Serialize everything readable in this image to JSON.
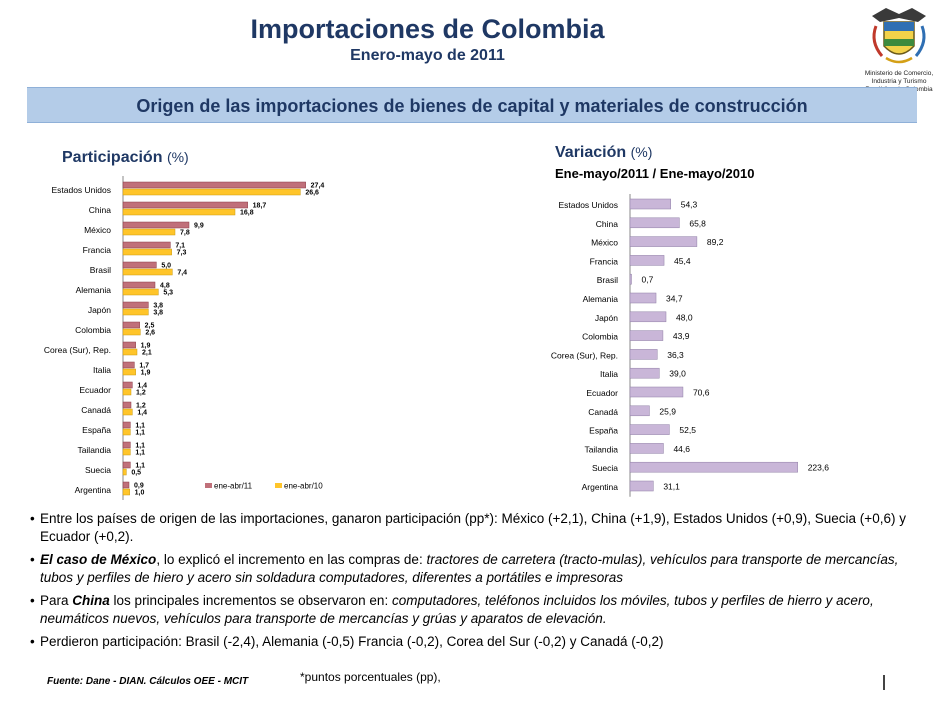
{
  "header": {
    "title": "Importaciones de Colombia",
    "subtitle": "Enero-mayo de 2011"
  },
  "logo": {
    "line1": "Ministerio de Comercio,",
    "line2": "Industria y Turismo",
    "line3": "República de Colombia"
  },
  "banner": "Origen de las importaciones de bienes de capital y materiales de construcción",
  "participacion": {
    "title": "Participación",
    "unit": "(%)"
  },
  "variacion": {
    "title": "Variación",
    "unit": "(%)",
    "subtitle": "Ene-mayo/2011 / Ene-mayo/2010"
  },
  "chart_data": [
    {
      "type": "bar",
      "orientation": "horizontal",
      "title": "Participación (%)",
      "categories": [
        "Estados Unidos",
        "China",
        "México",
        "Francia",
        "Brasil",
        "Alemania",
        "Japón",
        "Colombia",
        "Corea (Sur), Rep.",
        "Italia",
        "Ecuador",
        "Canadá",
        "España",
        "Tailandia",
        "Suecia",
        "Argentina"
      ],
      "series": [
        {
          "name": "ene-abr/11",
          "color": "#c0707a",
          "values": [
            27.4,
            18.7,
            9.9,
            7.1,
            5.0,
            4.8,
            3.8,
            2.5,
            1.9,
            1.7,
            1.4,
            1.2,
            1.1,
            1.1,
            1.1,
            0.9
          ]
        },
        {
          "name": "ene-abr/10",
          "color": "#ffc52a",
          "values": [
            26.6,
            16.8,
            7.8,
            7.3,
            7.4,
            5.3,
            3.8,
            2.6,
            2.1,
            1.9,
            1.2,
            1.4,
            1.1,
            1.1,
            0.5,
            1.0
          ]
        }
      ],
      "value_labels": [
        [
          "27,4",
          "18,7",
          "9,9",
          "7,1",
          "5,0",
          "4,8",
          "3,8",
          "2,5",
          "1,9",
          "1,7",
          "1,4",
          "1,2",
          "1,1",
          "1,1",
          "1,1",
          "0,9"
        ],
        [
          "26,6",
          "16,8",
          "7,8",
          "7,3",
          "7,4",
          "5,3",
          "3,8",
          "2,6",
          "2,1",
          "1,9",
          "1,2",
          "1,4",
          "1,1",
          "1,1",
          "0,5",
          "1,0"
        ]
      ],
      "xlim": [
        0,
        30
      ],
      "legend": "bottom-right",
      "grid": false
    },
    {
      "type": "bar",
      "orientation": "horizontal",
      "title": "Variación (%)",
      "subtitle": "Ene-mayo/2011 / Ene-mayo/2010",
      "categories": [
        "Estados Unidos",
        "China",
        "México",
        "Francia",
        "Brasil",
        "Alemania",
        "Japón",
        "Colombia",
        "Corea (Sur), Rep.",
        "Italia",
        "Ecuador",
        "Canadá",
        "España",
        "Tailandia",
        "Suecia",
        "Argentina"
      ],
      "series": [
        {
          "color": "#c9b6d8",
          "values": [
            54.3,
            65.8,
            89.2,
            45.4,
            0.7,
            34.7,
            48.0,
            43.9,
            36.3,
            39.0,
            70.6,
            25.9,
            52.5,
            44.6,
            223.6,
            31.1
          ]
        }
      ],
      "value_labels": [
        "54,3",
        "65,8",
        "89,2",
        "45,4",
        "0,7",
        "34,7",
        "48,0",
        "43,9",
        "36,3",
        "39,0",
        "70,6",
        "25,9",
        "52,5",
        "44,6",
        "223,6",
        "31,1"
      ],
      "xlim": [
        0,
        240
      ],
      "grid": false
    }
  ],
  "bullets": {
    "b1": "Entre los países de origen de las importaciones, ganaron participación (pp*): México (+2,1), China (+1,9), Estados Unidos (+0,9), Suecia (+0,6) y Ecuador (+0,2).",
    "b2_bold": "El caso de México",
    "b2_text": ", lo explicó el incremento en las compras de: ",
    "b2_italic": "tractores de carretera (tracto-mulas), vehículos para transporte de mercancías, tubos y perfiles de hiero y acero sin soldadura computadores, diferentes a portátiles e impresoras",
    "b3_pre": "Para ",
    "b3_bold": "China",
    "b3_text": " los principales incrementos se observaron en: ",
    "b3_italic": "computadores, teléfonos incluidos los móviles, tubos y perfiles de hierro y acero, neumáticos nuevos, vehículos para transporte de mercancías y grúas y aparatos de elevación.",
    "b4": "Perdieron participación: Brasil (-2,4), Alemania (-0,5) Francia (-0,2), Corea del Sur (-0,2) y Canadá (-0,2)"
  },
  "footer": {
    "source": "Fuente: Dane - DIAN. Cálculos OEE - MCIT",
    "footnote": "*puntos porcentuales (pp),"
  }
}
